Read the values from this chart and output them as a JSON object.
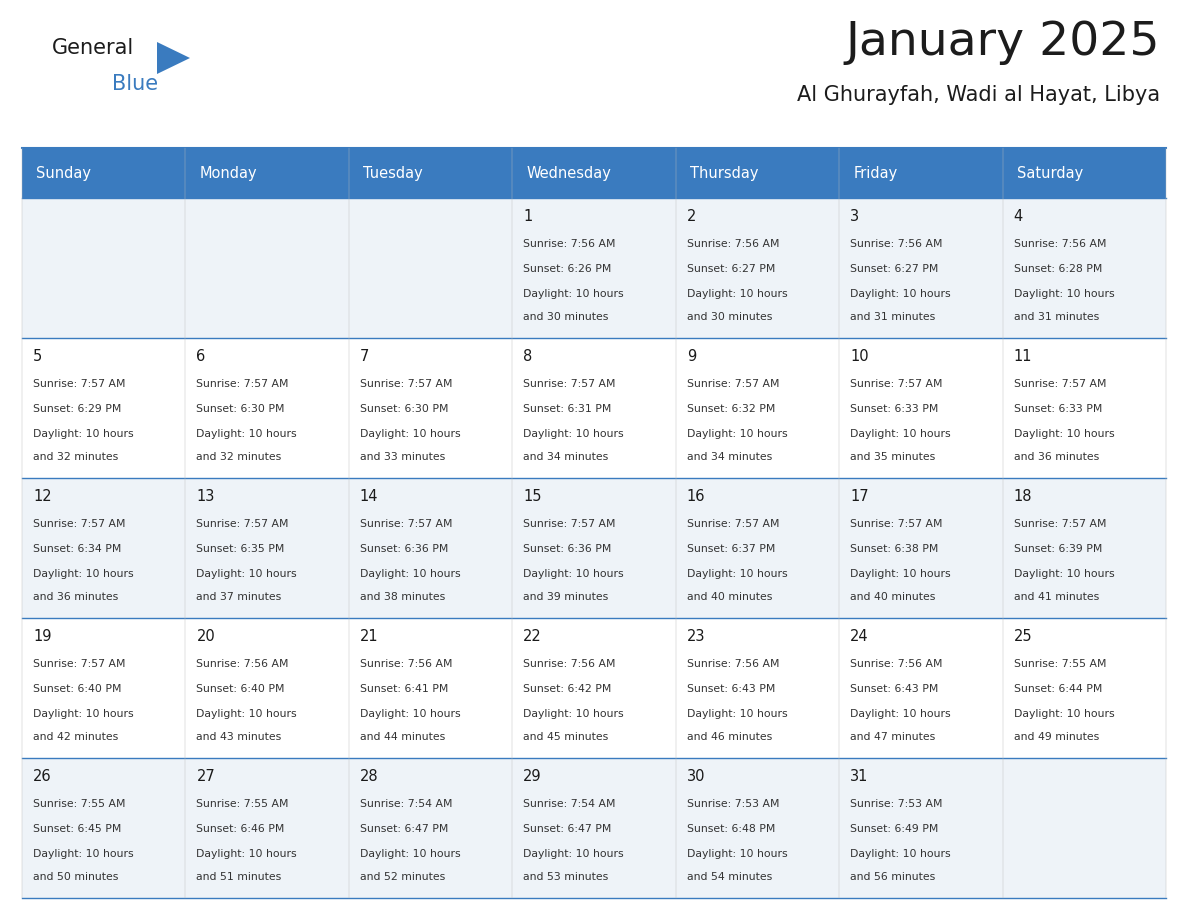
{
  "title": "January 2025",
  "subtitle": "Al Ghurayfah, Wadi al Hayat, Libya",
  "header_bg_color": "#3a7bbf",
  "text_color_dark": "#1a1a1a",
  "text_color_cell": "#333333",
  "day_names": [
    "Sunday",
    "Monday",
    "Tuesday",
    "Wednesday",
    "Thursday",
    "Friday",
    "Saturday"
  ],
  "days": [
    {
      "date": 1,
      "col": 3,
      "row": 0,
      "sunrise": "7:56 AM",
      "sunset": "6:26 PM",
      "daylight": "10 hours and 30 minutes"
    },
    {
      "date": 2,
      "col": 4,
      "row": 0,
      "sunrise": "7:56 AM",
      "sunset": "6:27 PM",
      "daylight": "10 hours and 30 minutes"
    },
    {
      "date": 3,
      "col": 5,
      "row": 0,
      "sunrise": "7:56 AM",
      "sunset": "6:27 PM",
      "daylight": "10 hours and 31 minutes"
    },
    {
      "date": 4,
      "col": 6,
      "row": 0,
      "sunrise": "7:56 AM",
      "sunset": "6:28 PM",
      "daylight": "10 hours and 31 minutes"
    },
    {
      "date": 5,
      "col": 0,
      "row": 1,
      "sunrise": "7:57 AM",
      "sunset": "6:29 PM",
      "daylight": "10 hours and 32 minutes"
    },
    {
      "date": 6,
      "col": 1,
      "row": 1,
      "sunrise": "7:57 AM",
      "sunset": "6:30 PM",
      "daylight": "10 hours and 32 minutes"
    },
    {
      "date": 7,
      "col": 2,
      "row": 1,
      "sunrise": "7:57 AM",
      "sunset": "6:30 PM",
      "daylight": "10 hours and 33 minutes"
    },
    {
      "date": 8,
      "col": 3,
      "row": 1,
      "sunrise": "7:57 AM",
      "sunset": "6:31 PM",
      "daylight": "10 hours and 34 minutes"
    },
    {
      "date": 9,
      "col": 4,
      "row": 1,
      "sunrise": "7:57 AM",
      "sunset": "6:32 PM",
      "daylight": "10 hours and 34 minutes"
    },
    {
      "date": 10,
      "col": 5,
      "row": 1,
      "sunrise": "7:57 AM",
      "sunset": "6:33 PM",
      "daylight": "10 hours and 35 minutes"
    },
    {
      "date": 11,
      "col": 6,
      "row": 1,
      "sunrise": "7:57 AM",
      "sunset": "6:33 PM",
      "daylight": "10 hours and 36 minutes"
    },
    {
      "date": 12,
      "col": 0,
      "row": 2,
      "sunrise": "7:57 AM",
      "sunset": "6:34 PM",
      "daylight": "10 hours and 36 minutes"
    },
    {
      "date": 13,
      "col": 1,
      "row": 2,
      "sunrise": "7:57 AM",
      "sunset": "6:35 PM",
      "daylight": "10 hours and 37 minutes"
    },
    {
      "date": 14,
      "col": 2,
      "row": 2,
      "sunrise": "7:57 AM",
      "sunset": "6:36 PM",
      "daylight": "10 hours and 38 minutes"
    },
    {
      "date": 15,
      "col": 3,
      "row": 2,
      "sunrise": "7:57 AM",
      "sunset": "6:36 PM",
      "daylight": "10 hours and 39 minutes"
    },
    {
      "date": 16,
      "col": 4,
      "row": 2,
      "sunrise": "7:57 AM",
      "sunset": "6:37 PM",
      "daylight": "10 hours and 40 minutes"
    },
    {
      "date": 17,
      "col": 5,
      "row": 2,
      "sunrise": "7:57 AM",
      "sunset": "6:38 PM",
      "daylight": "10 hours and 40 minutes"
    },
    {
      "date": 18,
      "col": 6,
      "row": 2,
      "sunrise": "7:57 AM",
      "sunset": "6:39 PM",
      "daylight": "10 hours and 41 minutes"
    },
    {
      "date": 19,
      "col": 0,
      "row": 3,
      "sunrise": "7:57 AM",
      "sunset": "6:40 PM",
      "daylight": "10 hours and 42 minutes"
    },
    {
      "date": 20,
      "col": 1,
      "row": 3,
      "sunrise": "7:56 AM",
      "sunset": "6:40 PM",
      "daylight": "10 hours and 43 minutes"
    },
    {
      "date": 21,
      "col": 2,
      "row": 3,
      "sunrise": "7:56 AM",
      "sunset": "6:41 PM",
      "daylight": "10 hours and 44 minutes"
    },
    {
      "date": 22,
      "col": 3,
      "row": 3,
      "sunrise": "7:56 AM",
      "sunset": "6:42 PM",
      "daylight": "10 hours and 45 minutes"
    },
    {
      "date": 23,
      "col": 4,
      "row": 3,
      "sunrise": "7:56 AM",
      "sunset": "6:43 PM",
      "daylight": "10 hours and 46 minutes"
    },
    {
      "date": 24,
      "col": 5,
      "row": 3,
      "sunrise": "7:56 AM",
      "sunset": "6:43 PM",
      "daylight": "10 hours and 47 minutes"
    },
    {
      "date": 25,
      "col": 6,
      "row": 3,
      "sunrise": "7:55 AM",
      "sunset": "6:44 PM",
      "daylight": "10 hours and 49 minutes"
    },
    {
      "date": 26,
      "col": 0,
      "row": 4,
      "sunrise": "7:55 AM",
      "sunset": "6:45 PM",
      "daylight": "10 hours and 50 minutes"
    },
    {
      "date": 27,
      "col": 1,
      "row": 4,
      "sunrise": "7:55 AM",
      "sunset": "6:46 PM",
      "daylight": "10 hours and 51 minutes"
    },
    {
      "date": 28,
      "col": 2,
      "row": 4,
      "sunrise": "7:54 AM",
      "sunset": "6:47 PM",
      "daylight": "10 hours and 52 minutes"
    },
    {
      "date": 29,
      "col": 3,
      "row": 4,
      "sunrise": "7:54 AM",
      "sunset": "6:47 PM",
      "daylight": "10 hours and 53 minutes"
    },
    {
      "date": 30,
      "col": 4,
      "row": 4,
      "sunrise": "7:53 AM",
      "sunset": "6:48 PM",
      "daylight": "10 hours and 54 minutes"
    },
    {
      "date": 31,
      "col": 5,
      "row": 4,
      "sunrise": "7:53 AM",
      "sunset": "6:49 PM",
      "daylight": "10 hours and 56 minutes"
    }
  ],
  "num_rows": 5,
  "num_cols": 7,
  "row_bg_colors": [
    "#eef3f8",
    "#ffffff",
    "#eef3f8",
    "#ffffff",
    "#eef3f8"
  ]
}
